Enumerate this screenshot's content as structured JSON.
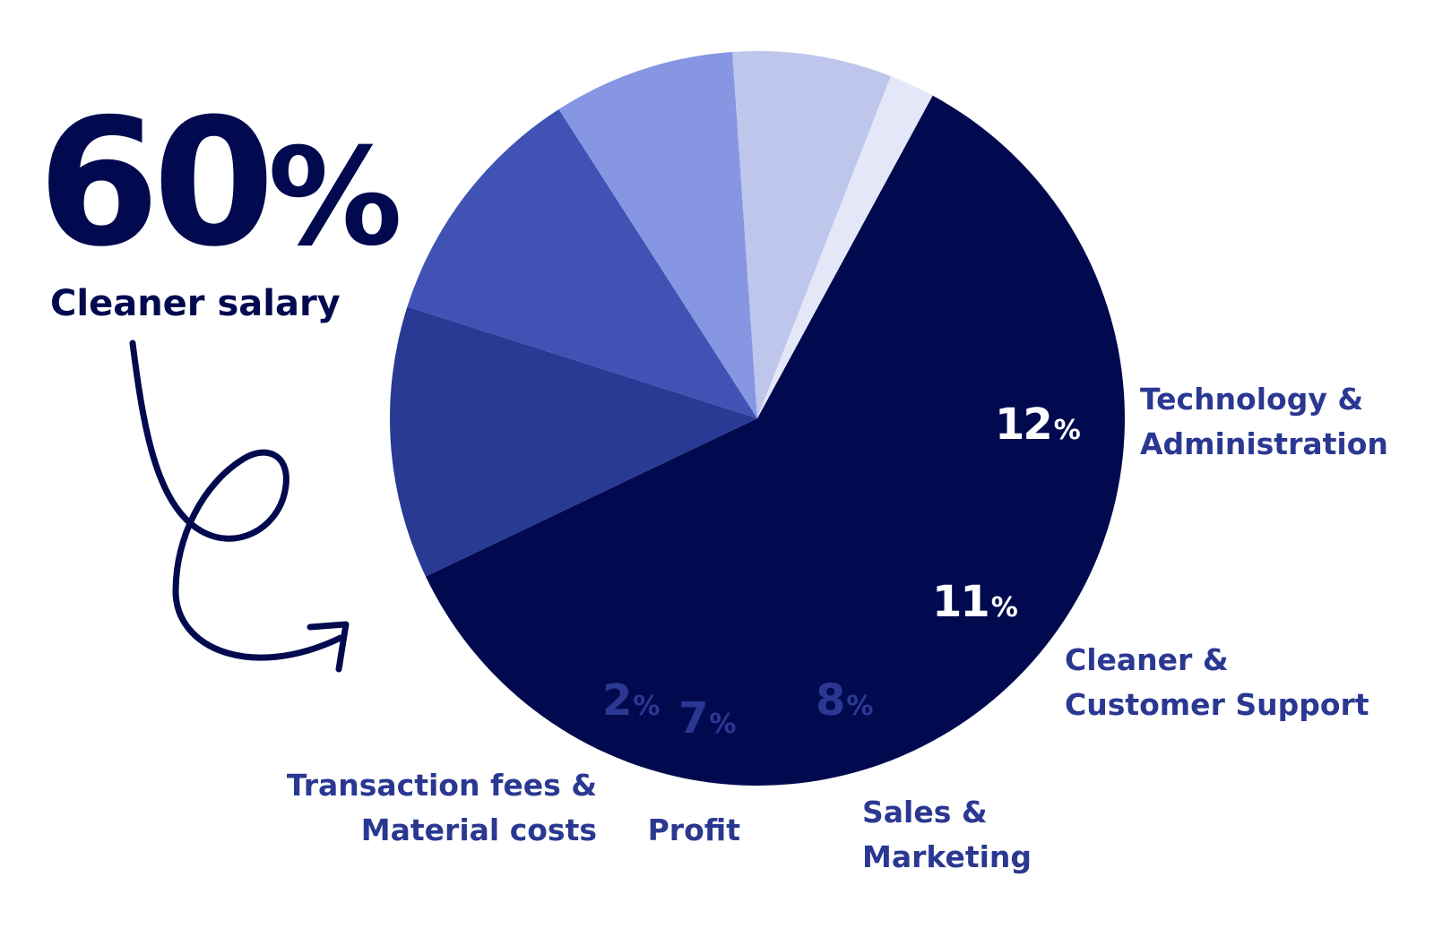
{
  "chart_data": {
    "type": "pie",
    "title": "",
    "slices": [
      {
        "name": "Cleaner salary",
        "value": 60,
        "label": "60",
        "unit": "%",
        "color": "#020a4f",
        "label_lines": [
          "Cleaner salary"
        ]
      },
      {
        "name": "Technology & Administration",
        "value": 12,
        "label": "12",
        "unit": "%",
        "color": "#283a94",
        "label_lines": [
          "Technology &",
          "Administration"
        ]
      },
      {
        "name": "Cleaner & Customer Support",
        "value": 11,
        "label": "11",
        "unit": "%",
        "color": "#4053b4",
        "label_lines": [
          "Cleaner &",
          "Customer Support"
        ]
      },
      {
        "name": "Sales & Marketing",
        "value": 8,
        "label": "8",
        "unit": "%",
        "color": "#8796e3",
        "label_lines": [
          "Sales &",
          "Marketing"
        ]
      },
      {
        "name": "Profit",
        "value": 7,
        "label": "7",
        "unit": "%",
        "color": "#bec6ec",
        "label_lines": [
          "Profit"
        ]
      },
      {
        "name": "Transaction fees & Material costs",
        "value": 2,
        "label": "2",
        "unit": "%",
        "color": "#e4e7f8",
        "label_lines": [
          "Transaction fees &",
          "Material costs"
        ]
      }
    ],
    "label_color": "#2b3892",
    "inner_label_light": "#ffffff",
    "inner_label_dark": "#2b3892"
  }
}
